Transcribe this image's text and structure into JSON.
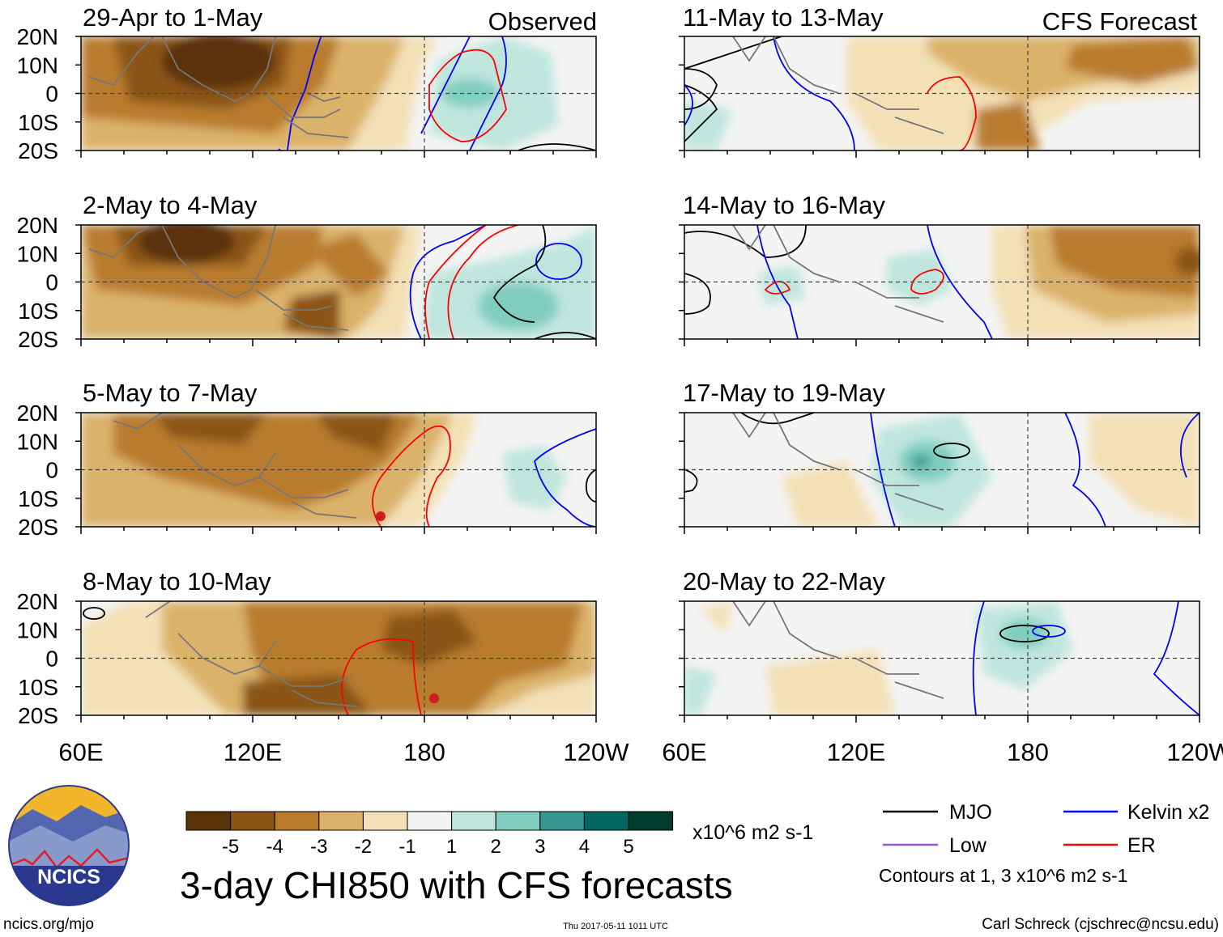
{
  "panels": {
    "observed": [
      {
        "title": "29-Apr to 1-May",
        "tag": "Observed"
      },
      {
        "title": "2-May to 4-May",
        "tag": ""
      },
      {
        "title": "5-May to 7-May",
        "tag": ""
      },
      {
        "title": "8-May to 10-May",
        "tag": ""
      }
    ],
    "forecast": [
      {
        "title": "11-May to 13-May",
        "tag": "CFS Forecast"
      },
      {
        "title": "14-May to 16-May",
        "tag": ""
      },
      {
        "title": "17-May to 19-May",
        "tag": ""
      },
      {
        "title": "20-May to 22-May",
        "tag": ""
      }
    ]
  },
  "axes": {
    "lat_labels": [
      "20N",
      "10N",
      "0",
      "10S",
      "20S"
    ],
    "lon_labels": [
      "60E",
      "120E",
      "180",
      "120W"
    ]
  },
  "colorbar": {
    "ticks": [
      "-5",
      "-4",
      "-3",
      "-2",
      "-1",
      "1",
      "2",
      "3",
      "4",
      "5"
    ],
    "colors": [
      "#5a3208",
      "#8a5414",
      "#b97c2d",
      "#dbb26b",
      "#f3e0b6",
      "#f4f4f4",
      "#bfe6dd",
      "#80cdc0",
      "#35978f",
      "#01665e",
      "#003c30"
    ],
    "units": "x10^6 m2 s-1"
  },
  "title": "3-day CHI850 with CFS forecasts",
  "legend": {
    "items": [
      {
        "label": "MJO",
        "color": "#000000"
      },
      {
        "label": "Kelvin x2",
        "color": "#0000ff"
      },
      {
        "label": "Low",
        "color": "#9955dd"
      },
      {
        "label": "ER",
        "color": "#ff0000"
      }
    ],
    "note": "Contours at 1, 3 x10^6 m2 s-1"
  },
  "logo": {
    "text": "NCICS"
  },
  "footer": {
    "url": "ncics.org/mjo",
    "timestamp": "Thu 2017-05-11 1011 UTC",
    "credit": "Carl Schreck (cjschrec@ncsu.edu)"
  }
}
